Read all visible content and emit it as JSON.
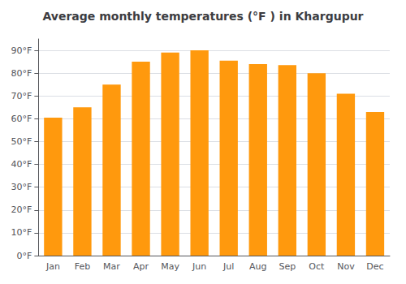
{
  "chart_data": {
    "type": "bar",
    "title": "Average monthly temperatures (°F ) in Khargupur",
    "categories": [
      "Jan",
      "Feb",
      "Mar",
      "Apr",
      "May",
      "Jun",
      "Jul",
      "Aug",
      "Sep",
      "Oct",
      "Nov",
      "Dec"
    ],
    "values": [
      60.5,
      65,
      75,
      85,
      89,
      90,
      85.5,
      84,
      83.5,
      80,
      71,
      63
    ],
    "color": "#ff990d",
    "ylim": [
      0,
      95
    ],
    "yticks": [
      {
        "value": 0,
        "label": "0°F"
      },
      {
        "value": 10,
        "label": "10°F"
      },
      {
        "value": 20,
        "label": "20°F"
      },
      {
        "value": 30,
        "label": "30°F"
      },
      {
        "value": 40,
        "label": "40°F"
      },
      {
        "value": 50,
        "label": "50°F"
      },
      {
        "value": 60,
        "label": "60°F"
      },
      {
        "value": 70,
        "label": "70°F"
      },
      {
        "value": 80,
        "label": "80°F"
      },
      {
        "value": 90,
        "label": "90°F"
      }
    ],
    "grid": true
  }
}
